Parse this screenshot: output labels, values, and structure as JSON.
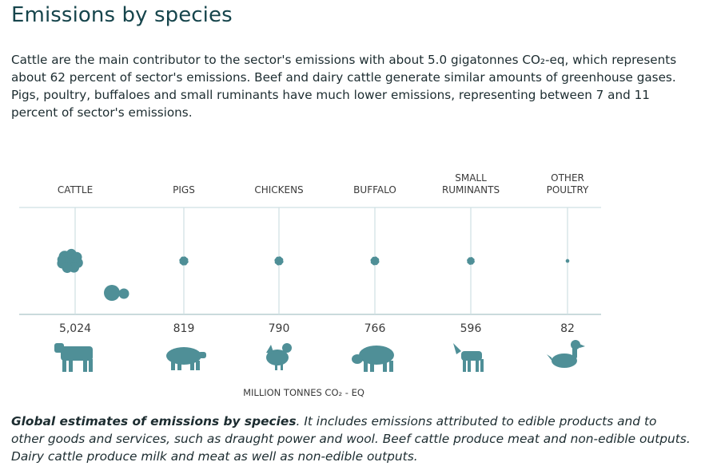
{
  "page": {
    "title": "Emissions by species",
    "intro": "Cattle are the main contributor to the sector's emissions with about 5.0 gigatonnes CO₂-eq, which represents about 62 percent of sector's emissions. Beef and dairy cattle generate similar amounts of greenhouse gases. Pigs, poultry, buffaloes and small ruminants have much lower emissions, representing between 7 and 11 percent of sector's emissions.",
    "caption_bold": "Global estimates of emissions by species",
    "caption_rest": ". It includes emissions attributed to edible products and to other goods and services, such as draught power and wool. Beef cattle produce meat and non-edible outputs. Dairy cattle produce milk and meat as well as non-edible outputs."
  },
  "chart_data": {
    "type": "bubble",
    "unit_label": "MILLION TONNES CO₂ - EQ",
    "categories": [
      {
        "lines": [
          "CATTLE"
        ],
        "value": 5024,
        "value_label": "5,024",
        "icon": "cow-icon"
      },
      {
        "lines": [
          "PIGS"
        ],
        "value": 819,
        "value_label": "819",
        "icon": "pig-icon"
      },
      {
        "lines": [
          "CHICKENS"
        ],
        "value": 790,
        "value_label": "790",
        "icon": "chicken-icon"
      },
      {
        "lines": [
          "BUFFALO"
        ],
        "value": 766,
        "value_label": "766",
        "icon": "buffalo-icon"
      },
      {
        "lines": [
          "SMALL",
          "RUMINANTS"
        ],
        "value": 596,
        "value_label": "596",
        "icon": "goat-icon"
      },
      {
        "lines": [
          "OTHER",
          "POULTRY"
        ],
        "value": 82,
        "value_label": "82",
        "icon": "duck-icon"
      }
    ],
    "bubble_color": "#4f8f97",
    "grid_color": "#cfe0e3",
    "grid": true
  }
}
